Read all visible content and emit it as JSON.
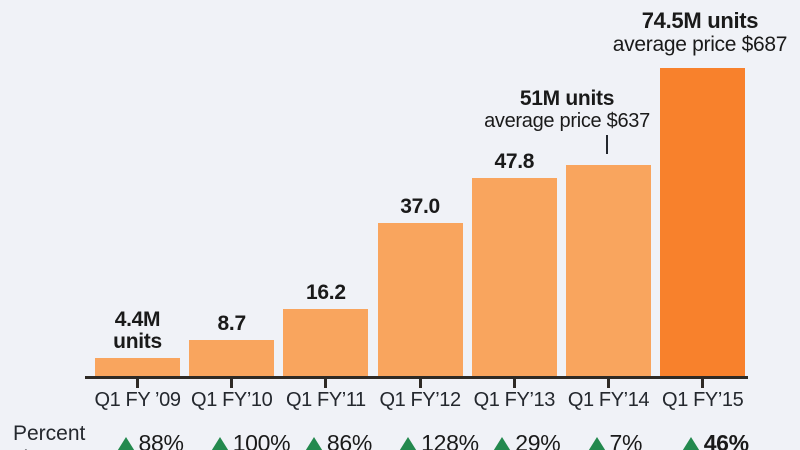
{
  "colors": {
    "background": "#f0f2f7",
    "text": "#1a1a1a",
    "bar": "#f9a55e",
    "bar_highlight": "#f8812c",
    "axis": "#2e2a25",
    "up_triangle": "#23894e"
  },
  "chart_data": {
    "type": "bar",
    "title": "",
    "xlabel": "",
    "ylabel": "",
    "categories": [
      "Q1 FY ’09",
      "Q1 FY’10",
      "Q1 FY’11",
      "Q1 FY’12",
      "Q1 FY’13",
      "Q1 FY’14",
      "Q1 FY’15"
    ],
    "values": [
      4.4,
      8.7,
      16.2,
      37.0,
      47.8,
      51,
      74.5
    ],
    "bar_value_labels": [
      "4.4M\nunits",
      "8.7",
      "16.2",
      "37.0",
      "47.8",
      "",
      ""
    ],
    "ylim": [
      0,
      74.5
    ],
    "grid": false,
    "legend": false,
    "highlight_index": 6,
    "annotations": [
      {
        "title": "51M units",
        "subtitle": "average price $637",
        "target_category": "Q1 FY’14",
        "pointer": true
      },
      {
        "title": "74.5M units",
        "subtitle": "average price $687",
        "target_category": "Q1 FY’15",
        "pointer": false
      }
    ],
    "percent_change_row": {
      "label_line1": "Percent",
      "label_line2": "change",
      "values": [
        "88%",
        "100%",
        "86%",
        "128%",
        "29%",
        "7%",
        "46%"
      ],
      "bold_index": 6
    }
  }
}
